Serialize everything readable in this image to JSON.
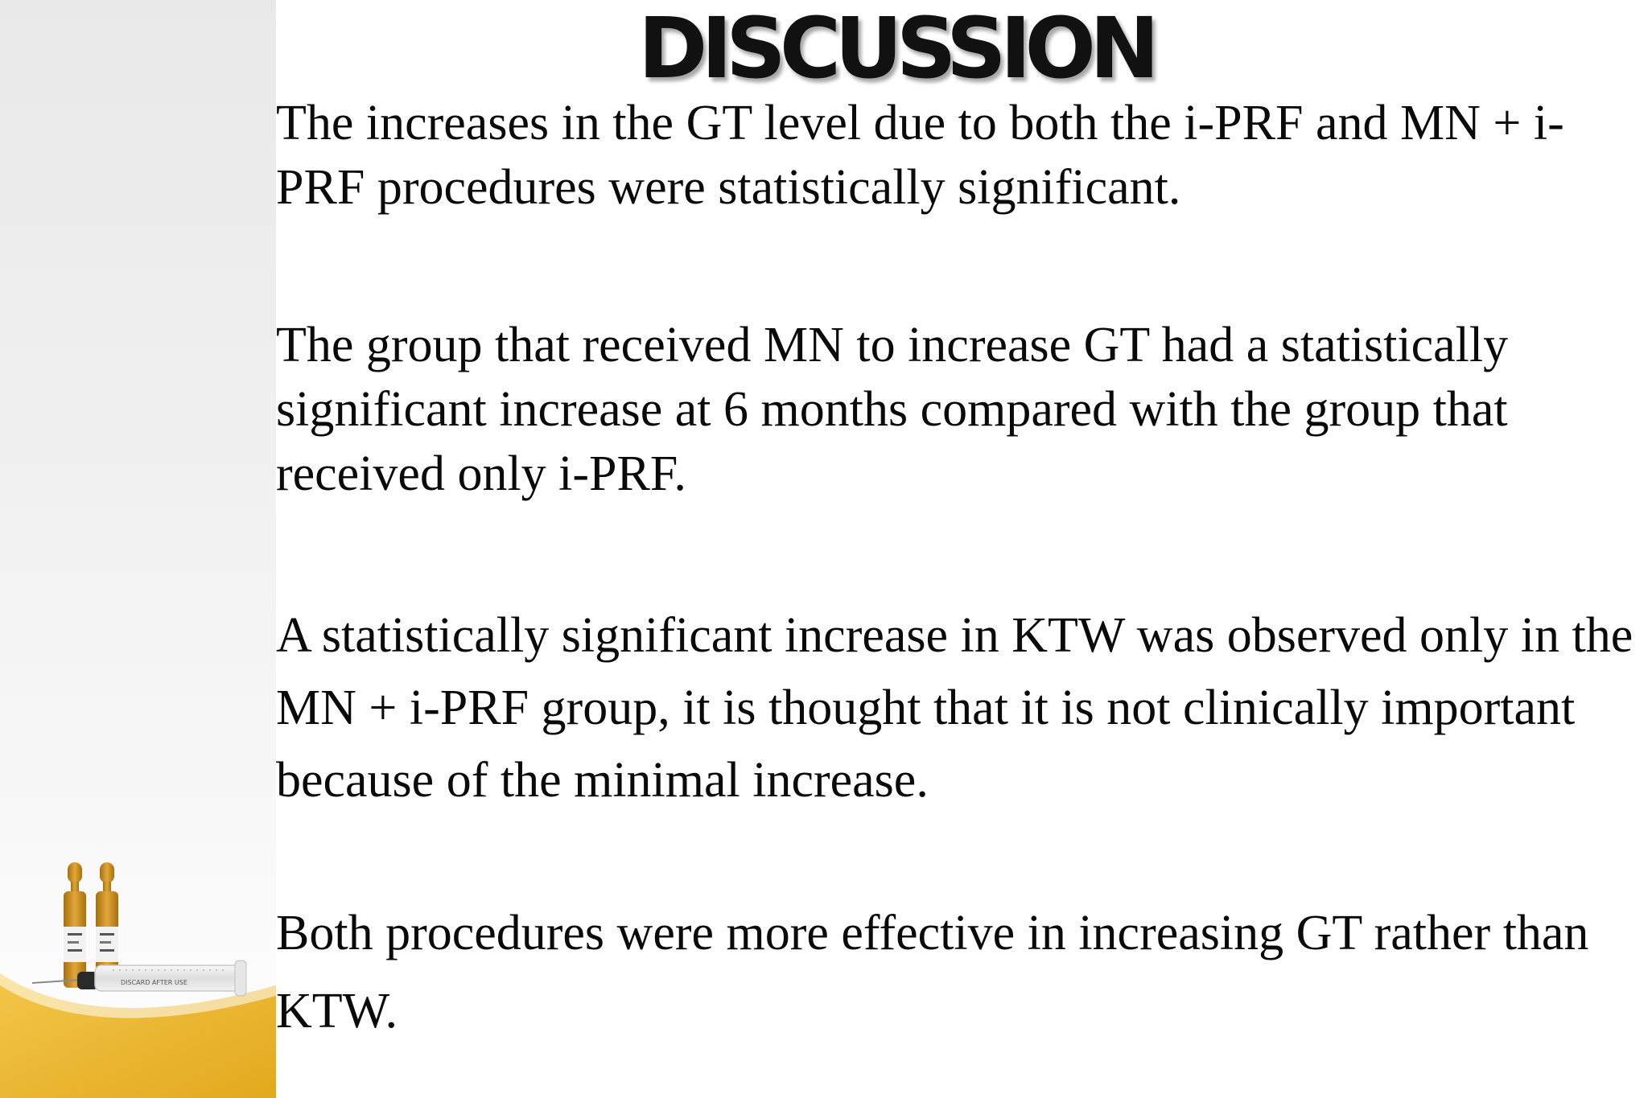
{
  "slide": {
    "title": "DISCUSSION",
    "paragraphs": [
      "The increases in the GT level due to both the i-PRF and MN + i-PRF procedures were statistically significant.",
      "The group that received MN to increase GT had a statistically significant increase at 6 months compared with the group that received only i-PRF.",
      "A statistically significant increase in KTW was observed only in the MN + i-PRF group, it is thought that it is not clinically important because of the minimal increase.",
      "Both procedures were more effective in increasing GT rather than KTW."
    ]
  },
  "decoration": {
    "ampoule_label": "DISCARD AFTER USE",
    "accent_color": "#e8b52a",
    "ampoule_color": "#c98a12"
  }
}
